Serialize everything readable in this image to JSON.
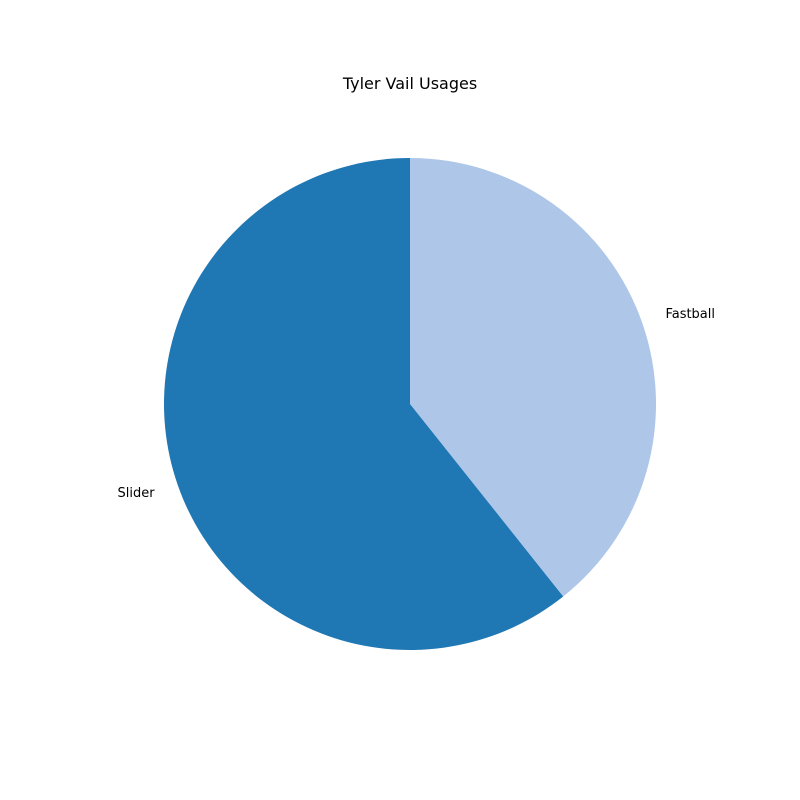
{
  "chart_data": {
    "type": "pie",
    "title": "Tyler Vail Usages",
    "categories": [
      "Fastball",
      "Slider"
    ],
    "values": [
      39.3,
      60.7
    ],
    "colors": [
      "#aec7e8",
      "#1f77b4"
    ],
    "start_angle_deg": 90,
    "direction": "clockwise"
  }
}
